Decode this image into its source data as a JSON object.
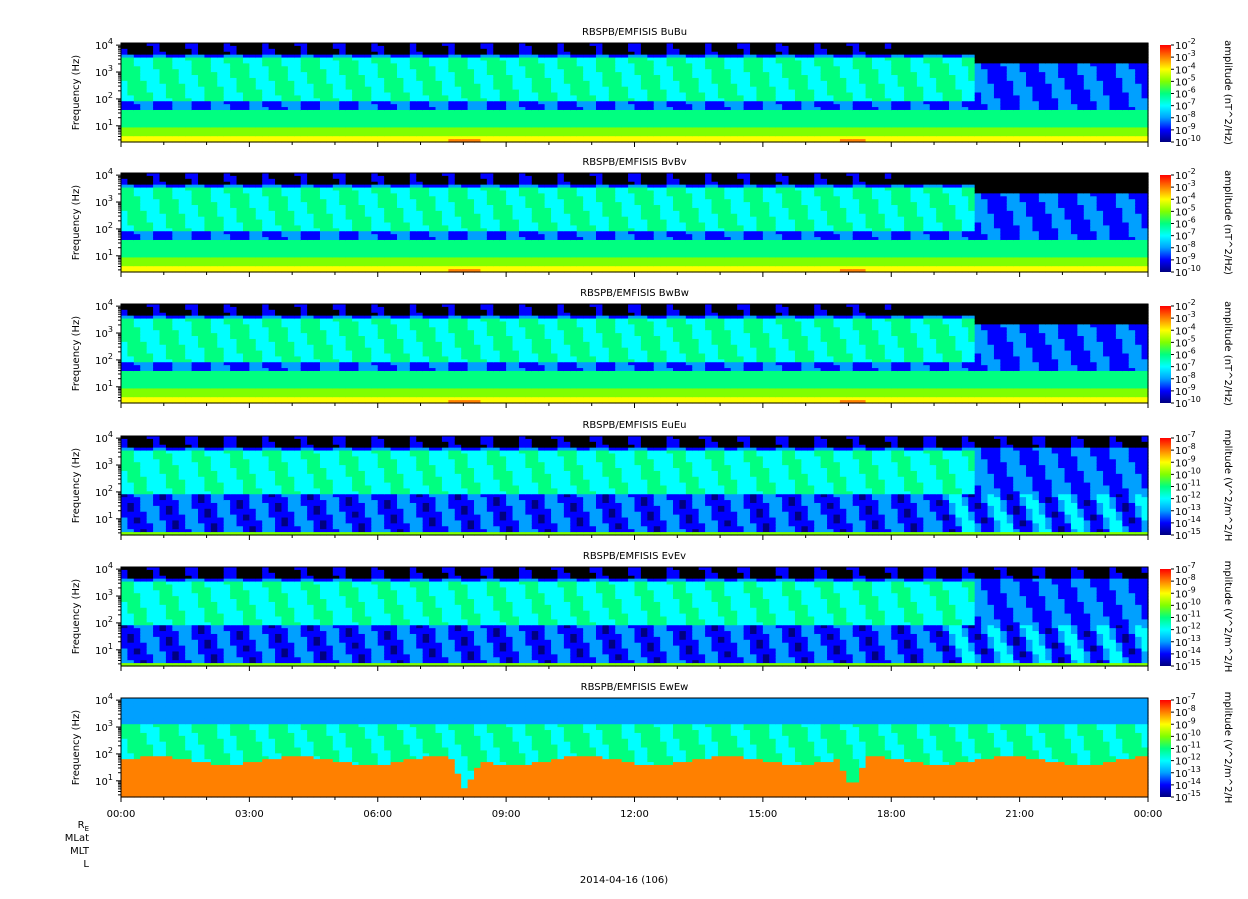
{
  "chart_data": {
    "type": "heatmap",
    "x_tick_labels": [
      "00:00",
      "03:00",
      "06:00",
      "09:00",
      "12:00",
      "15:00",
      "18:00",
      "21:00",
      "00:00"
    ],
    "x_range_hours": [
      0,
      24
    ],
    "x_label": "2014-04-16 (106)",
    "ephemeris_labels": [
      "R_E",
      "MLat",
      "MLT",
      "L"
    ],
    "y_axis": {
      "label": "Frequency (Hz)",
      "scale": "log",
      "range_hz": [
        2.5,
        12000
      ],
      "tick_labels": [
        {
          "base": "10",
          "exp": "1",
          "value": 10
        },
        {
          "base": "10",
          "exp": "2",
          "value": 100
        },
        {
          "base": "10",
          "exp": "3",
          "value": 1000
        },
        {
          "base": "10",
          "exp": "4",
          "value": 10000
        }
      ]
    },
    "panels": [
      {
        "title": "RBSPB/EMFISIS  BuBu",
        "kind": "B",
        "zlabel": "amplitude (nT^2/Hz)",
        "z_exponents": [
          "-2",
          "-3",
          "-4",
          "-5",
          "-6",
          "-7",
          "-8",
          "-9",
          "-10"
        ],
        "z_range_log": [
          -10,
          -2
        ]
      },
      {
        "title": "RBSPB/EMFISIS  BvBv",
        "kind": "B",
        "zlabel": "amplitude (nT^2/Hz)",
        "z_exponents": [
          "-2",
          "-3",
          "-4",
          "-5",
          "-6",
          "-7",
          "-8",
          "-9",
          "-10"
        ],
        "z_range_log": [
          -10,
          -2
        ]
      },
      {
        "title": "RBSPB/EMFISIS  BwBw",
        "kind": "B",
        "zlabel": "amplitude (nT^2/Hz)",
        "z_exponents": [
          "-2",
          "-3",
          "-4",
          "-5",
          "-6",
          "-7",
          "-8",
          "-9",
          "-10"
        ],
        "z_range_log": [
          -10,
          -2
        ]
      },
      {
        "title": "RBSPB/EMFISIS  EuEu",
        "kind": "E",
        "zlabel": "mplitude (V^2/m^2/H",
        "z_exponents": [
          "-7",
          "-8",
          "-9",
          "-10",
          "-11",
          "-12",
          "-13",
          "-14",
          "-15"
        ],
        "z_range_log": [
          -15,
          -7
        ]
      },
      {
        "title": "RBSPB/EMFISIS  EvEv",
        "kind": "E",
        "zlabel": "mplitude (V^2/m^2/H",
        "z_exponents": [
          "-7",
          "-8",
          "-9",
          "-10",
          "-11",
          "-12",
          "-13",
          "-14",
          "-15"
        ],
        "z_range_log": [
          -15,
          -7
        ]
      },
      {
        "title": "RBSPB/EMFISIS  EwEw",
        "kind": "Ew",
        "zlabel": "mplitude (V^2/m^2/H",
        "z_exponents": [
          "-7",
          "-8",
          "-9",
          "-10",
          "-11",
          "-12",
          "-13",
          "-14",
          "-15"
        ],
        "z_range_log": [
          -15,
          -7
        ]
      }
    ],
    "colormap": [
      "#000080",
      "#0000ff",
      "#00a0ff",
      "#00ffff",
      "#00ff80",
      "#80ff00",
      "#ffff00",
      "#ff8000",
      "#ff0000"
    ],
    "events_hours": [
      8.05,
      17.1
    ]
  }
}
